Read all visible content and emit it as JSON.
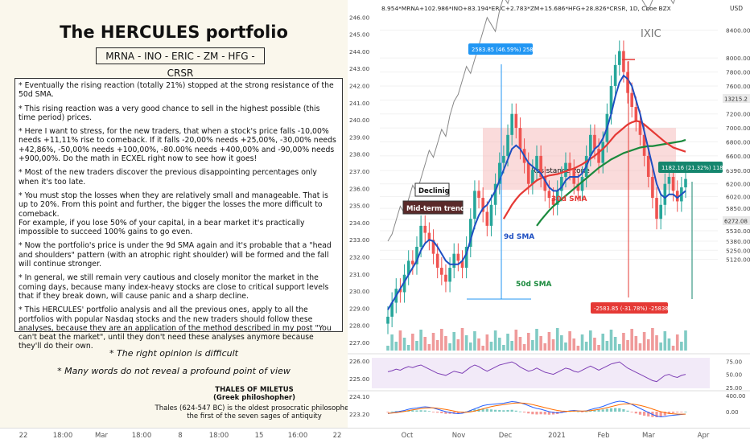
{
  "left": {
    "title": "The HERCULES portfolio",
    "tickers": "MRNA - INO - ERIC - ZM - HFG - CRSR",
    "notes": [
      "* Eventually the rising reaction (totally 21%) stopped at the strong resistance of the 50d SMA.",
      "* This rising reaction was a very good chance to sell in the highest possible (this time period) prices.",
      "* Here I want to stress, for the new traders, that when a stock's price falls -10,00% needs +11,11% rise to comeback. If it falls -20,00% needs +25,00%, -30,00% needs +42,86%, -50,00% needs +100,00%, -80.00% needs +400,00% and -90,00% needs +900,00%. Do the math in ECXEL right now to see how it goes!",
      "* Most of the new traders discover the previous disappointing percentages only when it's too late.",
      "* You must stop the losses when they are relatively small and manageable. That is up to 20%. From this point and further, the bigger the losses the more difficult to comeback.\nFor example, if you lose 50% of your capital, in a bear market it's practically impossible to succeed 100% gains to go even.",
      "* Now the portfolio's price is under the 9d SMA again and it's probable that a \"head and shoulders\" pattern (with an atrophic right shoulder) will be formed and the fall will continue stronger.",
      "* In general, we still remain very cautious and closely monitor the market in the coming days, because many index-heavy stocks are close to critical support levels that if they break down, will cause panic and a sharp decline.",
      "* This HERCULES' portfolio analysis and all the previous ones, apply to all the portfolios with popular Nasdaq stocks and the new traders should follow these analyses, because they are an application of the method described in my post \"You can't beat the market\", until they don't need these analyses anymore because they'll do their own."
    ],
    "quote1": "* The right opinion is difficult",
    "quote2": "* Many words do not reveal a profound point of view",
    "thales_name": "THALES OF MILETUS",
    "thales_sub": "(Greek philoshopher)",
    "thales_desc1": "Thales (624-547 BC) is the oldest prosocratic philosopher,",
    "thales_desc2": "the first of the seven sages of antiquity"
  },
  "header": {
    "symbol": "8.954*MRNA+102.986*INO+83.194*ERIC+2.783*ZM+15.686*HFG+28.826*CRSR, 1D, Cboe BZX"
  },
  "labels": {
    "usd": "USD",
    "ixic": "IXIC",
    "resistance": "Resistance zone",
    "declining": "Declinig",
    "mid_term": "Mid-term trend",
    "sma30": "30d SMA",
    "sma9": "9d SMA",
    "sma50": "50d SMA",
    "measure_up": "2583.85 (46.59%) 258385",
    "measure_down": "-2583.85 (-31.78%) -258385",
    "measure_right": "1182.16 (21.32%) 118216",
    "last_ixic": "13215.2",
    "last_price": "6272.08"
  },
  "chart_data": [
    {
      "type": "candlestick",
      "title": "8.954*MRNA+102.986*INO+83.194*ERIC+2.783*ZM+15.686*HFG+28.826*CRSR, 1D, Cboe BZX",
      "y_right_ticks": [
        5120,
        5250,
        5380,
        5530,
        5690,
        5850,
        6020,
        6200,
        6390,
        6600,
        6800,
        7000,
        7200,
        7400,
        7600,
        7800,
        8000,
        8400
      ],
      "y_right_tick_labels": [
        "5120.00",
        "5250.00",
        "5380.00",
        "5530.00",
        "5690.00",
        "5850.00",
        "6020.00",
        "6200.00",
        "6390.00",
        "6600.00",
        "6800.00",
        "7000.00",
        "7200.00",
        "7400.00",
        "7600.00",
        "7800.00",
        "8000.00",
        "8400.00"
      ],
      "y_left_ticks": [
        "227.00",
        "228.00",
        "229.00",
        "230.00",
        "231.00",
        "232.00",
        "233.00",
        "234.00",
        "235.00",
        "236.00",
        "237.00",
        "238.00",
        "239.00",
        "240.00",
        "241.00",
        "242.00",
        "243.00",
        "244.00",
        "245.00",
        "246.00"
      ],
      "x_ticks": [
        "Oct",
        "Nov",
        "Dec",
        "2021",
        "Feb",
        "Mar",
        "Apr"
      ],
      "close": [
        4300,
        4500,
        4700,
        4650,
        4900,
        5100,
        5050,
        5300,
        5600,
        5500,
        5400,
        5200,
        5000,
        4900,
        4800,
        5000,
        5200,
        5100,
        5000,
        5300,
        5700,
        6100,
        6000,
        5800,
        5600,
        5900,
        6200,
        6500,
        6600,
        6900,
        7200,
        7000,
        6700,
        6500,
        6200,
        6400,
        6600,
        6300,
        6100,
        6000,
        5900,
        6100,
        6300,
        6500,
        6400,
        6200,
        6100,
        6300,
        6600,
        6900,
        6700,
        6500,
        6800,
        7200,
        7600,
        7900,
        8100,
        7800,
        7500,
        7300,
        7100,
        6900,
        6600,
        6300,
        6000,
        5700,
        5900,
        6200,
        6300,
        6100,
        5950,
        6150,
        6270
      ],
      "sma9": [
        4400,
        4500,
        4600,
        4700,
        4800,
        4900,
        5000,
        5100,
        5250,
        5350,
        5400,
        5380,
        5300,
        5200,
        5100,
        5050,
        5050,
        5050,
        5100,
        5200,
        5400,
        5600,
        5750,
        5850,
        5900,
        6000,
        6100,
        6250,
        6400,
        6550,
        6700,
        6750,
        6700,
        6600,
        6500,
        6450,
        6400,
        6350,
        6250,
        6150,
        6100,
        6100,
        6150,
        6250,
        6300,
        6300,
        6300,
        6350,
        6450,
        6600,
        6700,
        6750,
        6850,
        7000,
        7200,
        7450,
        7650,
        7750,
        7700,
        7600,
        7400,
        7200,
        6950,
        6700,
        6450,
        6200,
        6050,
        6000,
        6050,
        6050,
        6000,
        6050,
        6100
      ],
      "sma30": [
        null,
        null,
        null,
        null,
        null,
        null,
        null,
        null,
        null,
        null,
        null,
        null,
        null,
        null,
        null,
        null,
        null,
        null,
        null,
        null,
        null,
        null,
        null,
        null,
        null,
        null,
        null,
        null,
        5700,
        5800,
        5900,
        5980,
        6050,
        6100,
        6150,
        6200,
        6250,
        6280,
        6300,
        6320,
        6330,
        6340,
        6360,
        6380,
        6400,
        6420,
        6450,
        6480,
        6520,
        6560,
        6600,
        6650,
        6700,
        6760,
        6830,
        6900,
        6950,
        7000,
        7050,
        7080,
        7100,
        7090,
        7050,
        7000,
        6950,
        6900,
        6850,
        6800,
        6760,
        6720,
        6700,
        6680,
        6660
      ],
      "sma50": [
        null,
        null,
        null,
        null,
        null,
        null,
        null,
        null,
        null,
        null,
        null,
        null,
        null,
        null,
        null,
        null,
        null,
        null,
        null,
        null,
        null,
        null,
        null,
        null,
        null,
        null,
        null,
        null,
        null,
        null,
        null,
        null,
        null,
        null,
        null,
        null,
        5600,
        5680,
        5750,
        5820,
        5880,
        5930,
        5980,
        6030,
        6080,
        6130,
        6180,
        6230,
        6280,
        6330,
        6380,
        6430,
        6470,
        6510,
        6550,
        6580,
        6610,
        6640,
        6660,
        6680,
        6700,
        6720,
        6730,
        6740,
        6740,
        6750,
        6760,
        6770,
        6780,
        6790,
        6800,
        6810,
        6830
      ],
      "ixic_overlay": [
        4000,
        4100,
        4300,
        4500,
        4400,
        4600,
        4800,
        4700,
        4900,
        5100,
        5300,
        5200,
        5400,
        5600,
        5500,
        5800,
        6000,
        6100,
        6300,
        6500,
        6400,
        6600,
        6800,
        7000,
        7200,
        7100,
        7000,
        7300,
        7500,
        7400,
        7600,
        7800,
        7700,
        7900,
        8000,
        8200,
        8100,
        8300,
        8500,
        8400,
        8600,
        8700,
        8500,
        8300,
        8100,
        7900,
        7700,
        7500,
        7700,
        7900,
        8100,
        8300,
        8500,
        8700,
        8600,
        8400,
        8200,
        8000,
        7900,
        7700,
        7600,
        7500,
        7400,
        7300,
        7450,
        7600,
        7700,
        7600,
        7500,
        7400,
        7550,
        7650,
        7700
      ],
      "resistance_zone": [
        6800,
        7000
      ],
      "last_price": 6272.08
    },
    {
      "type": "line",
      "title": "RSI",
      "y_ticks": [
        "75.00",
        "50.00",
        "25.00"
      ],
      "values": [
        55,
        57,
        60,
        58,
        62,
        65,
        63,
        66,
        68,
        64,
        60,
        56,
        52,
        50,
        48,
        52,
        56,
        54,
        52,
        58,
        64,
        68,
        65,
        60,
        56,
        60,
        64,
        68,
        70,
        72,
        74,
        70,
        64,
        60,
        56,
        58,
        62,
        58,
        54,
        52,
        50,
        54,
        58,
        62,
        60,
        56,
        54,
        58,
        62,
        66,
        62,
        58,
        62,
        66,
        70,
        72,
        74,
        68,
        62,
        58,
        54,
        50,
        46,
        42,
        38,
        36,
        42,
        48,
        50,
        46,
        44,
        48,
        50
      ]
    },
    {
      "type": "line",
      "title": "MACD",
      "y_ticks": [
        "400.00",
        "0.00"
      ],
      "macd": [
        -50,
        -30,
        -10,
        10,
        30,
        60,
        80,
        90,
        110,
        120,
        110,
        90,
        60,
        30,
        0,
        -20,
        -40,
        -50,
        -40,
        -10,
        30,
        70,
        110,
        150,
        170,
        180,
        190,
        200,
        210,
        230,
        250,
        240,
        220,
        190,
        150,
        110,
        80,
        60,
        30,
        0,
        -20,
        -30,
        -20,
        0,
        20,
        30,
        20,
        10,
        20,
        50,
        80,
        100,
        130,
        170,
        210,
        240,
        260,
        250,
        220,
        180,
        130,
        80,
        30,
        -20,
        -70,
        -110,
        -130,
        -120,
        -100,
        -90,
        -80,
        -70,
        -60
      ],
      "signal": [
        -40,
        -35,
        -25,
        -10,
        5,
        25,
        45,
        60,
        75,
        90,
        95,
        95,
        85,
        70,
        55,
        35,
        15,
        -5,
        -15,
        -15,
        -5,
        15,
        40,
        70,
        100,
        125,
        145,
        160,
        175,
        190,
        205,
        215,
        215,
        210,
        195,
        175,
        150,
        125,
        100,
        75,
        50,
        30,
        15,
        10,
        10,
        15,
        15,
        15,
        15,
        25,
        40,
        55,
        75,
        100,
        125,
        150,
        175,
        190,
        195,
        190,
        175,
        155,
        130,
        100,
        65,
        30,
        0,
        -25,
        -45,
        -55,
        -60,
        -62,
        -62
      ]
    }
  ]
}
